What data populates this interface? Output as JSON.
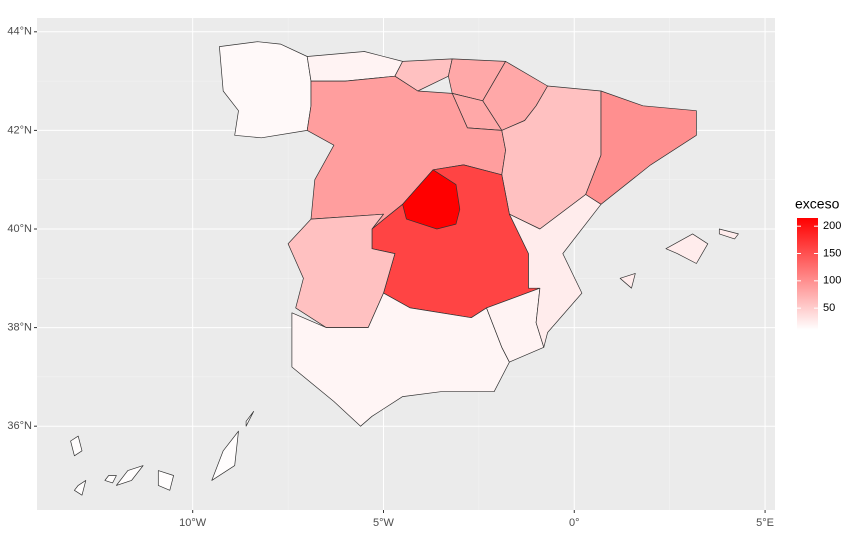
{
  "chart_data": {
    "type": "choropleth",
    "xlim": [
      -14.08,
      5.26
    ],
    "ylim": [
      34.3,
      44.28
    ],
    "xticks": [
      {
        "value": -10,
        "label": "10°W"
      },
      {
        "value": -5,
        "label": "5°W"
      },
      {
        "value": 0,
        "label": "0°"
      },
      {
        "value": 5,
        "label": "5°E"
      }
    ],
    "yticks": [
      {
        "value": 36,
        "label": "36°N"
      },
      {
        "value": 38,
        "label": "38°N"
      },
      {
        "value": 40,
        "label": "40°N"
      },
      {
        "value": 42,
        "label": "42°N"
      },
      {
        "value": 44,
        "label": "44°N"
      }
    ],
    "grid": true,
    "values": [
      15,
      20,
      60,
      80,
      80,
      80,
      88,
      60,
      100,
      215,
      160,
      60,
      18,
      20,
      25,
      25,
      12
    ],
    "legend": {
      "title": "exceso",
      "limits": [
        10,
        215
      ],
      "ticks": [
        50,
        100,
        150,
        200
      ],
      "low_color": "#ffffff",
      "high_color": "#ff0000"
    },
    "legend_position": "right"
  }
}
